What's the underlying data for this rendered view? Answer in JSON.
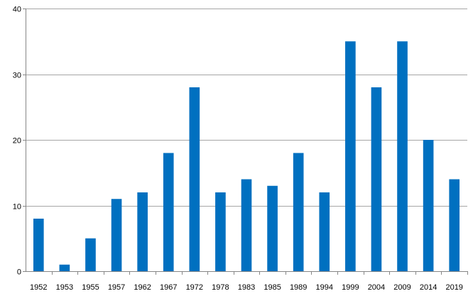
{
  "chart_data": {
    "type": "bar",
    "title": "",
    "xlabel": "",
    "ylabel": "",
    "categories": [
      "1952",
      "1953",
      "1955",
      "1957",
      "1962",
      "1967",
      "1972",
      "1978",
      "1983",
      "1985",
      "1989",
      "1994",
      "1999",
      "2004",
      "2009",
      "2014",
      "2019"
    ],
    "values": [
      8,
      1,
      5,
      11,
      12,
      18,
      28,
      12,
      14,
      13,
      18,
      12,
      35,
      28,
      35,
      20,
      14
    ],
    "ylim": [
      0,
      40
    ],
    "yticks": [
      "0",
      "10",
      "20",
      "30",
      "40"
    ],
    "grid": true,
    "legend": "none",
    "bar_color": "#0070c0",
    "grid_color": "#a6a6a6",
    "axis_color": "#868686"
  }
}
